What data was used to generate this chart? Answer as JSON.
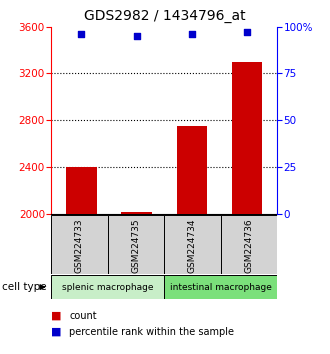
{
  "title": "GDS2982 / 1434796_at",
  "samples": [
    "GSM224733",
    "GSM224735",
    "GSM224734",
    "GSM224736"
  ],
  "counts": [
    2400,
    2020,
    2750,
    3300
  ],
  "percentiles": [
    96,
    95,
    96,
    97
  ],
  "ylim_left": [
    2000,
    3600
  ],
  "ylim_right": [
    0,
    100
  ],
  "yticks_left": [
    2000,
    2400,
    2800,
    3200,
    3600
  ],
  "yticks_right": [
    0,
    25,
    50,
    75,
    100
  ],
  "ytick_labels_right": [
    "0",
    "25",
    "50",
    "75",
    "100%"
  ],
  "bar_color": "#cc0000",
  "marker_color": "#0000cc",
  "groups": [
    {
      "label": "splenic macrophage",
      "indices": [
        0,
        1
      ]
    },
    {
      "label": "intestinal macrophage",
      "indices": [
        2,
        3
      ]
    }
  ],
  "group_box_color_splenic": "#c8eec8",
  "group_box_color_intestinal": "#7be07b",
  "sample_box_color": "#d3d3d3",
  "legend_count_color": "#cc0000",
  "legend_pct_color": "#0000cc",
  "title_fontsize": 10,
  "tick_fontsize": 7.5,
  "sample_fontsize": 6.5,
  "group_fontsize": 6.5,
  "cell_type_label": "cell type",
  "legend_count_label": "count",
  "legend_pct_label": "percentile rank within the sample"
}
